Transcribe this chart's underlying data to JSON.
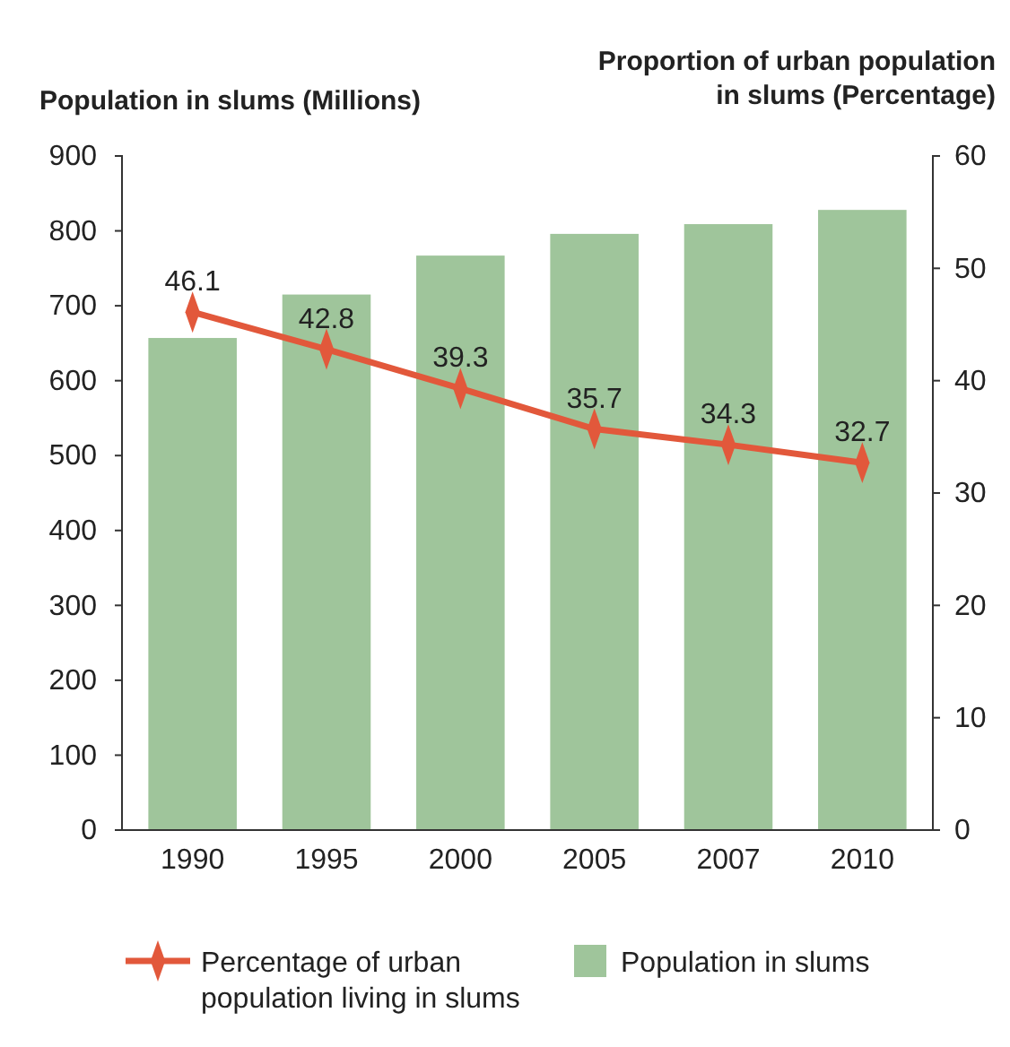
{
  "chart_data": {
    "type": "bar",
    "ylabel": "Population in slums (Millions)",
    "y2label": "Proportion of urban population in slums (Percentage)",
    "categories": [
      "1990",
      "1995",
      "2000",
      "2005",
      "2007",
      "2010"
    ],
    "series": [
      {
        "name": "Population in slums",
        "color": "#9fc59b",
        "values": [
          657,
          715,
          767,
          796,
          809,
          828
        ]
      },
      {
        "name": "Percentage of urban population living in slums",
        "type": "line",
        "axis": "y2",
        "color": "#e2583b",
        "marker": "diamond",
        "values": [
          46.1,
          42.8,
          39.3,
          35.7,
          34.3,
          32.7
        ],
        "value_labels": [
          "46.1",
          "42.8",
          "39.3",
          "35.7",
          "34.3",
          "32.7"
        ]
      }
    ],
    "ylim": [
      0,
      900
    ],
    "yticks": [
      0,
      100,
      200,
      300,
      400,
      500,
      600,
      700,
      800,
      900
    ],
    "y2lim": [
      0,
      60
    ],
    "y2ticks": [
      0,
      10,
      20,
      30,
      40,
      50,
      60
    ],
    "grid": false,
    "legend": "bottom"
  }
}
